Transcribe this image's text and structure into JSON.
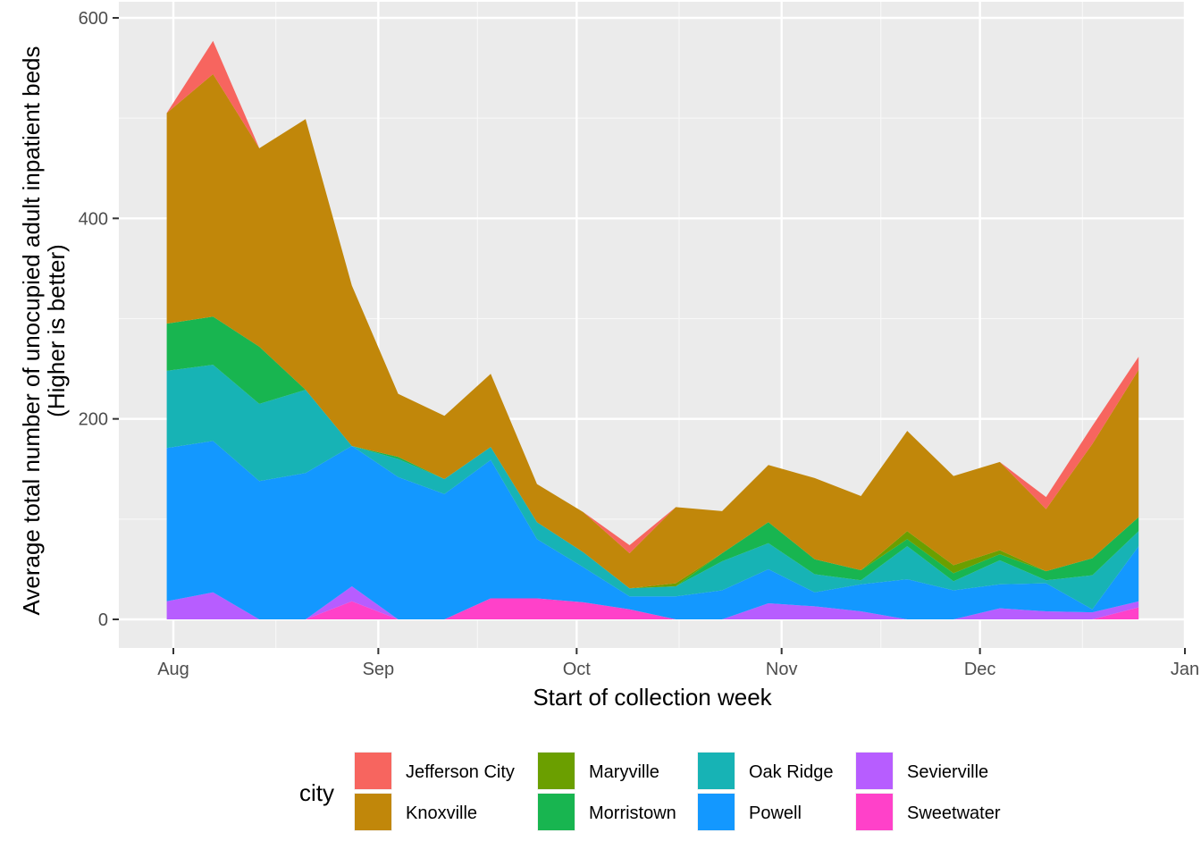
{
  "chart_data": {
    "type": "area",
    "stacked": true,
    "xlabel": "Start of collection week",
    "ylabel_lines": [
      "Average total number of unocupied adult inpatient beds",
      "(Higher is better)"
    ],
    "ylim": [
      0,
      600
    ],
    "y_ticks": [
      0,
      200,
      400,
      600
    ],
    "x_tick_labels": [
      "Aug",
      "Sep",
      "Oct",
      "Nov",
      "Dec",
      "Jan"
    ],
    "x_tick_dates": [
      "2020-08-01",
      "2020-09-01",
      "2020-10-01",
      "2020-11-01",
      "2020-12-01",
      "2021-01-01"
    ],
    "x": [
      "2020-07-31",
      "2020-08-07",
      "2020-08-14",
      "2020-08-21",
      "2020-08-28",
      "2020-09-04",
      "2020-09-11",
      "2020-09-18",
      "2020-09-25",
      "2020-10-02",
      "2020-10-09",
      "2020-10-16",
      "2020-10-23",
      "2020-10-30",
      "2020-11-06",
      "2020-11-13",
      "2020-11-20",
      "2020-11-27",
      "2020-12-04",
      "2020-12-11",
      "2020-12-18",
      "2020-12-25"
    ],
    "grid": true,
    "legend_position": "bottom",
    "legend_title": "city",
    "series": [
      {
        "name": "Sweetwater",
        "color": "#FF41C9",
        "values": [
          0,
          0,
          0,
          0,
          18,
          0,
          0,
          21,
          21,
          17,
          10,
          0,
          0,
          0,
          0,
          0,
          0,
          0,
          0,
          0,
          0,
          12
        ]
      },
      {
        "name": "Sevierville",
        "color": "#B75DFF",
        "values": [
          18,
          27,
          0,
          0,
          15,
          0,
          0,
          0,
          0,
          0,
          0,
          0,
          0,
          16,
          13,
          8,
          0,
          0,
          11,
          8,
          7,
          6
        ]
      },
      {
        "name": "Powell",
        "color": "#1398FF",
        "values": [
          153,
          151,
          138,
          146,
          140,
          142,
          125,
          138,
          59,
          35,
          13,
          23,
          29,
          34,
          14,
          27,
          40,
          29,
          24,
          28,
          3,
          55
        ]
      },
      {
        "name": "Oak Ridge",
        "color": "#17B3B5",
        "values": [
          77,
          76,
          77,
          83,
          0,
          18,
          15,
          13,
          17,
          15,
          8,
          10,
          29,
          26,
          18,
          4,
          33,
          9,
          24,
          3,
          34,
          15
        ]
      },
      {
        "name": "Morristown",
        "color": "#18B550",
        "values": [
          47,
          48,
          57,
          0,
          0,
          2,
          0,
          0,
          0,
          0,
          0,
          0,
          8,
          21,
          15,
          10,
          7,
          8,
          6,
          9,
          17,
          14
        ]
      },
      {
        "name": "Maryville",
        "color": "#6B9F00",
        "values": [
          0,
          0,
          0,
          0,
          0,
          0,
          0,
          0,
          0,
          0,
          0,
          3,
          0,
          0,
          0,
          0,
          8,
          8,
          4,
          0,
          0,
          0
        ]
      },
      {
        "name": "Knoxville",
        "color": "#C1870A",
        "values": [
          210,
          242,
          198,
          270,
          160,
          63,
          63,
          73,
          38,
          40,
          35,
          76,
          42,
          57,
          81,
          74,
          100,
          89,
          88,
          62,
          114,
          147
        ]
      },
      {
        "name": "Jefferson City",
        "color": "#F7655F",
        "values": [
          0,
          33,
          0,
          0,
          0,
          0,
          0,
          0,
          0,
          0,
          8,
          0,
          0,
          0,
          0,
          0,
          0,
          0,
          0,
          12,
          18,
          13
        ]
      }
    ]
  },
  "legend": {
    "title": "city",
    "items": [
      {
        "label": "Jefferson City",
        "color": "#F7655F"
      },
      {
        "label": "Knoxville",
        "color": "#C1870A"
      },
      {
        "label": "Maryville",
        "color": "#6B9F00"
      },
      {
        "label": "Morristown",
        "color": "#18B550"
      },
      {
        "label": "Oak Ridge",
        "color": "#17B3B5"
      },
      {
        "label": "Powell",
        "color": "#1398FF"
      },
      {
        "label": "Sevierville",
        "color": "#B75DFF"
      },
      {
        "label": "Sweetwater",
        "color": "#FF41C9"
      }
    ]
  }
}
